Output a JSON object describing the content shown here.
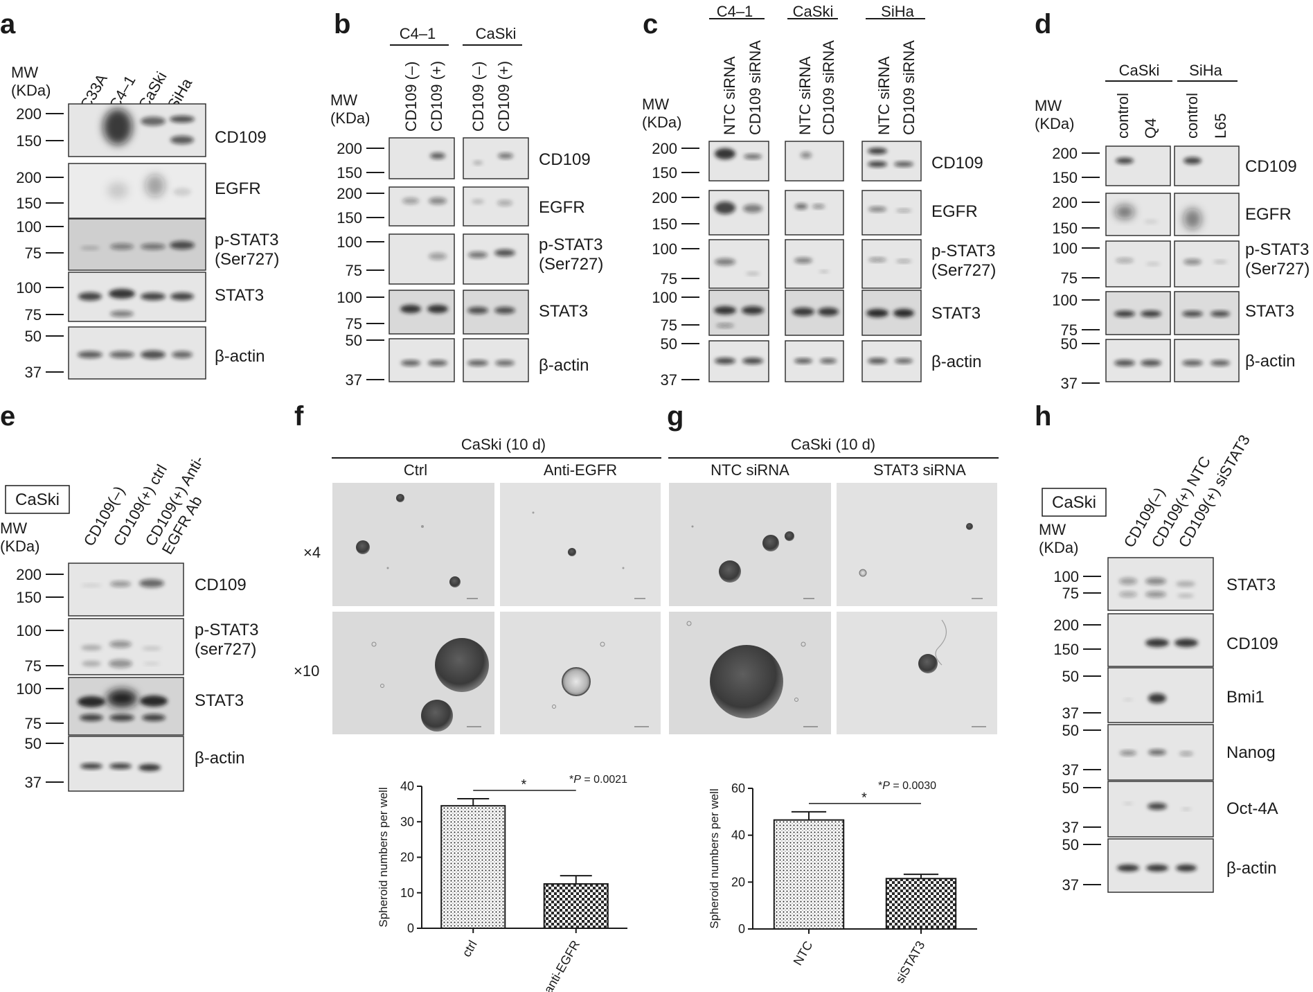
{
  "panel_labels": [
    "a",
    "b",
    "c",
    "d",
    "e",
    "f",
    "g",
    "h"
  ],
  "mw_label": [
    "MW",
    "(KDa)"
  ],
  "cell_lines": {
    "caski": "CaSki"
  },
  "panel_a": {
    "lanes": [
      "C33A",
      "C4–1",
      "CaSki",
      "SiHa"
    ],
    "blots": [
      {
        "label": [
          "CD109"
        ],
        "ticks": [
          "200",
          "150"
        ]
      },
      {
        "label": [
          "EGFR"
        ],
        "ticks": [
          "200",
          "150"
        ]
      },
      {
        "label": [
          "p-STAT3",
          "(Ser727)"
        ],
        "ticks": [
          "100",
          "75"
        ]
      },
      {
        "label": [
          "STAT3"
        ],
        "ticks": [
          "100",
          "75"
        ]
      },
      {
        "label": [
          "β-actin"
        ],
        "ticks": [
          "50",
          "37"
        ]
      }
    ]
  },
  "panel_b": {
    "groups": [
      "C4–1",
      "CaSki"
    ],
    "lanes": [
      "CD109 (–)",
      "CD109 (+)",
      "CD109 (–)",
      "CD109 (+)"
    ],
    "blots": [
      {
        "label": [
          "CD109"
        ],
        "ticks": [
          "200",
          "150"
        ]
      },
      {
        "label": [
          "EGFR"
        ],
        "ticks": [
          "200",
          "150"
        ]
      },
      {
        "label": [
          "p-STAT3",
          "(Ser727)"
        ],
        "ticks": [
          "100",
          "75"
        ]
      },
      {
        "label": [
          "STAT3"
        ],
        "ticks": [
          "100",
          "75"
        ]
      },
      {
        "label": [
          "β-actin"
        ],
        "ticks": [
          "50",
          "37"
        ]
      }
    ]
  },
  "panel_c": {
    "groups": [
      "C4–1",
      "CaSki",
      "SiHa"
    ],
    "lanes": [
      "NTC siRNA",
      "CD109 siRNA",
      "NTC siRNA",
      "CD109 siRNA",
      "NTC siRNA",
      "CD109 siRNA"
    ],
    "blots": [
      {
        "label": [
          "CD109"
        ],
        "ticks": [
          "200",
          "150"
        ]
      },
      {
        "label": [
          "EGFR"
        ],
        "ticks": [
          "200",
          "150"
        ]
      },
      {
        "label": [
          "p-STAT3",
          "(Ser727)"
        ],
        "ticks": [
          "100",
          "75"
        ]
      },
      {
        "label": [
          "STAT3"
        ],
        "ticks": [
          "100",
          "75"
        ]
      },
      {
        "label": [
          "β-actin"
        ],
        "ticks": [
          "50",
          "37"
        ]
      }
    ]
  },
  "panel_d": {
    "groups": [
      "CaSki",
      "SiHa"
    ],
    "lanes": [
      "control",
      "Q4",
      "control",
      "L65"
    ],
    "blots": [
      {
        "label": [
          "CD109"
        ],
        "ticks": [
          "200",
          "150"
        ]
      },
      {
        "label": [
          "EGFR"
        ],
        "ticks": [
          "200",
          "150"
        ]
      },
      {
        "label": [
          "p-STAT3",
          "(Ser727)"
        ],
        "ticks": [
          "100",
          "75"
        ]
      },
      {
        "label": [
          "STAT3"
        ],
        "ticks": [
          "100",
          "75"
        ]
      },
      {
        "label": [
          "β-actin"
        ],
        "ticks": [
          "50",
          "37"
        ]
      }
    ]
  },
  "panel_e": {
    "lanes": [
      [
        "CD109(–)"
      ],
      [
        "CD109(+) ctrl"
      ],
      [
        "CD109(+) Anti-",
        "EGFR Ab"
      ]
    ],
    "blots": [
      {
        "label": [
          "CD109"
        ],
        "ticks": [
          "200",
          "150"
        ]
      },
      {
        "label": [
          "p-STAT3",
          "(ser727)"
        ],
        "ticks": [
          "100",
          "75"
        ]
      },
      {
        "label": [
          "STAT3"
        ],
        "ticks": [
          "100",
          "75"
        ]
      },
      {
        "label": [
          "β-actin"
        ],
        "ticks": [
          "50",
          "37"
        ]
      }
    ]
  },
  "panel_f": {
    "header": "CaSki (10 d)",
    "columns": [
      "Ctrl",
      "Anti-EGFR"
    ],
    "magnifications": [
      "×4",
      "×10"
    ]
  },
  "panel_g": {
    "header": "CaSki (10 d)",
    "columns": [
      "NTC siRNA",
      "STAT3 siRNA"
    ]
  },
  "panel_h": {
    "lanes": [
      "CD109(–)",
      "CD109(+) NTC",
      "CD109(+) siSTAT3"
    ],
    "blots": [
      {
        "label": [
          "STAT3"
        ],
        "ticks": [
          "100",
          "75"
        ]
      },
      {
        "label": [
          "CD109"
        ],
        "ticks": [
          "200",
          "150"
        ]
      },
      {
        "label": [
          "Bmi1"
        ],
        "ticks": [
          "50",
          "37"
        ]
      },
      {
        "label": [
          "Nanog"
        ],
        "ticks": [
          "50",
          "37"
        ]
      },
      {
        "label": [
          "Oct-4A"
        ],
        "ticks": [
          "50",
          "37"
        ]
      },
      {
        "label": [
          "β-actin"
        ],
        "ticks": [
          "50",
          "37"
        ]
      }
    ]
  },
  "chart_data": [
    {
      "type": "bar",
      "categories": [
        "ctrl",
        "anti-EGFR"
      ],
      "values": [
        34.5,
        12.5
      ],
      "errors": [
        2.0,
        2.3
      ],
      "ylabel": "Spheroid numbers per well",
      "ylim": [
        0,
        40
      ],
      "yticks": [
        "0",
        "10",
        "20",
        "30",
        "40"
      ],
      "significance": {
        "star": "*",
        "p_prefix": "*",
        "p_italic": "P",
        "p_value": " = 0.0021"
      }
    },
    {
      "type": "bar",
      "categories": [
        "NTC",
        "siSTAT3"
      ],
      "values": [
        46.5,
        21.5
      ],
      "errors": [
        3.5,
        1.8
      ],
      "ylabel": "Spheroid numbers per well",
      "ylim": [
        0,
        60
      ],
      "yticks": [
        "0",
        "20",
        "40",
        "60"
      ],
      "significance": {
        "star": "*",
        "p_prefix": "*",
        "p_italic": "P",
        "p_value": " = 0.0030"
      }
    }
  ]
}
